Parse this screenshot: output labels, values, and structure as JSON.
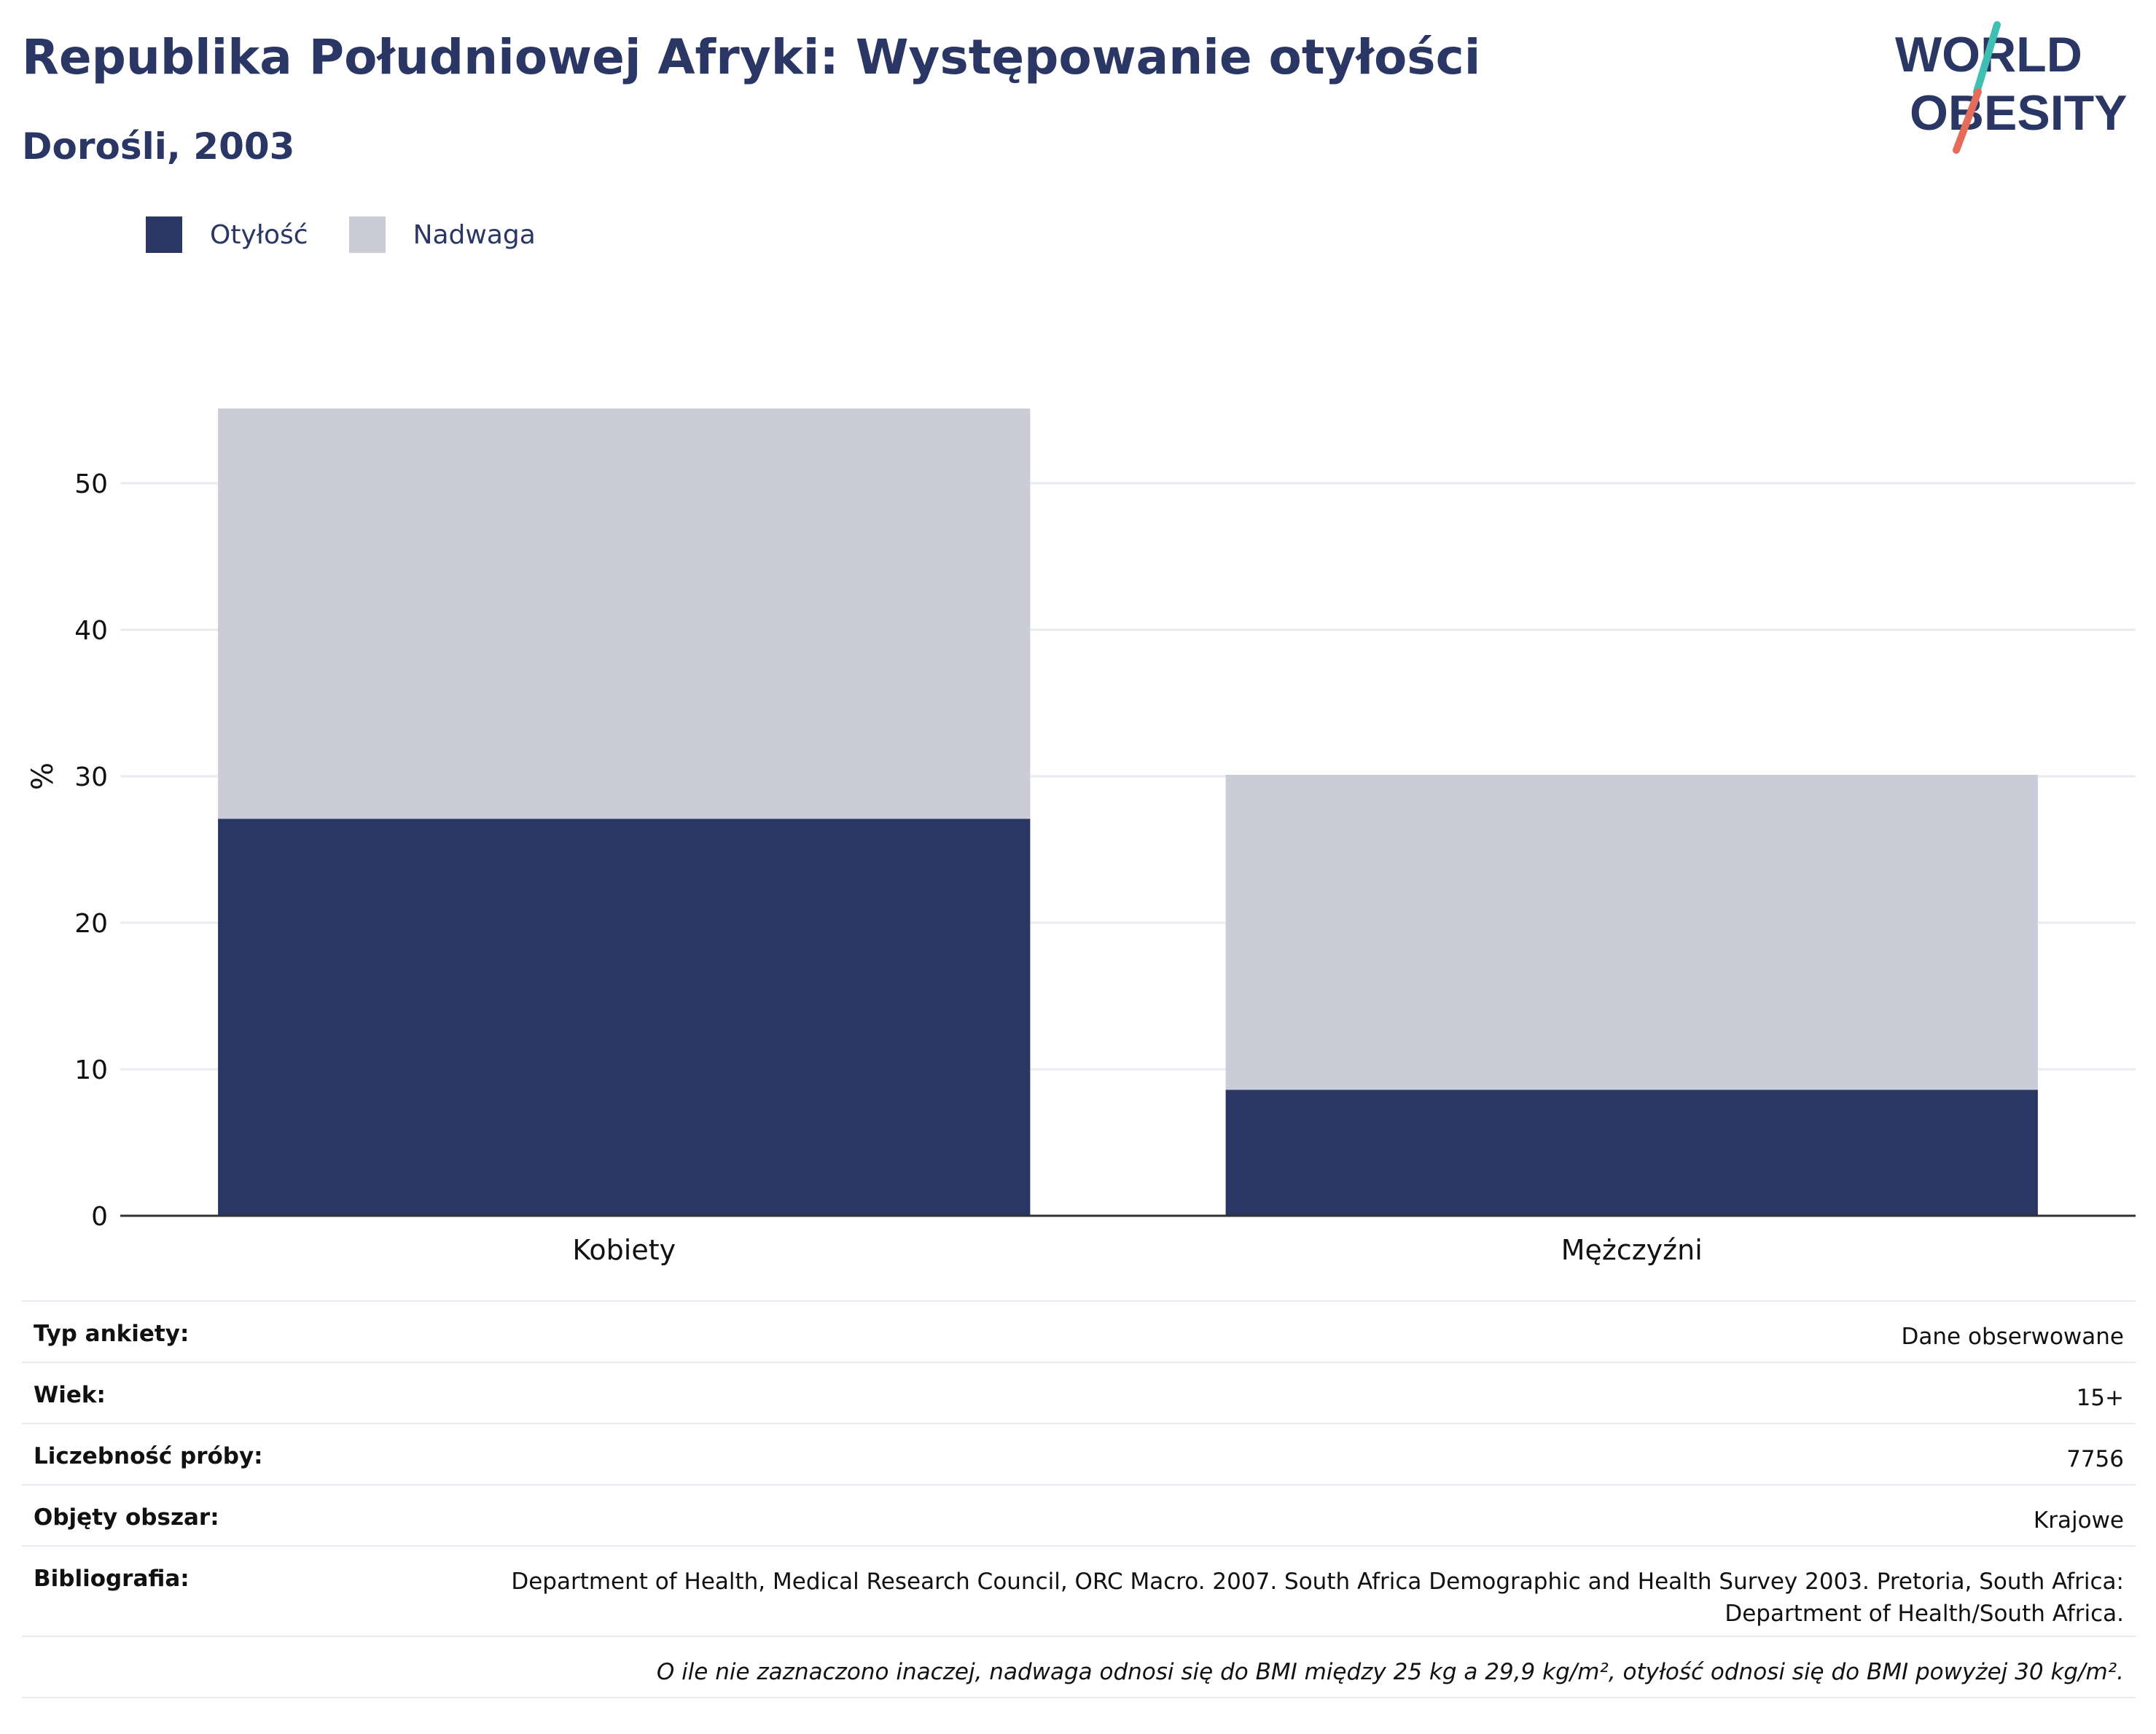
{
  "header": {
    "title": "Republika Południowej Afryki: Występowanie otyłości",
    "subtitle": "Dorośli, 2003"
  },
  "logo": {
    "line1": "WORLD",
    "line2": "OBESITY",
    "colors": {
      "text": "#2a3664",
      "slash_top": "#3fbfb4",
      "slash_bottom": "#e56b5b"
    }
  },
  "colors": {
    "obesity": "#2a3664",
    "overweight": "#cacdd8",
    "grid": "#e9ebf0",
    "axis": "#333333"
  },
  "chart_data": {
    "type": "bar",
    "stacked": true,
    "categories": [
      "Kobiety",
      "Mężczyźni"
    ],
    "series": [
      {
        "name": "Otyłość",
        "values": [
          27.1,
          8.6
        ],
        "color": "#2a3664"
      },
      {
        "name": "Nadwaga",
        "values": [
          28.0,
          21.5
        ],
        "color": "#cacdd8"
      }
    ],
    "ylabel": "%",
    "ylim": [
      0,
      60
    ],
    "yticks": [
      0,
      10,
      20,
      30,
      40,
      50
    ],
    "grid": true,
    "legend_position": "top-left"
  },
  "info": [
    {
      "key": "Typ ankiety:",
      "value": "Dane obserwowane"
    },
    {
      "key": "Wiek:",
      "value": "15+"
    },
    {
      "key": "Liczebność próby:",
      "value": "7756"
    },
    {
      "key": "Objęty obszar:",
      "value": "Krajowe"
    },
    {
      "key": "Bibliografia:",
      "value": "Department of Health, Medical Research Council, ORC Macro. 2007. South Africa Demographic and Health Survey 2003. Pretoria, South Africa: Department of Health/South Africa."
    }
  ],
  "note": "O ile nie zaznaczono inaczej, nadwaga odnosi się do BMI między 25 kg a 29,9 kg/m², otyłość odnosi się do BMI powyżej 30 kg/m²."
}
